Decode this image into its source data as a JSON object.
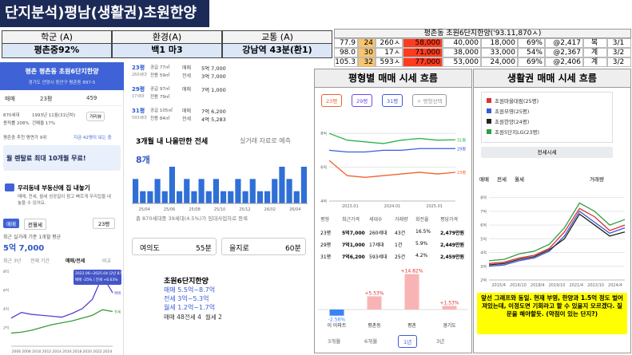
{
  "header": {
    "title": "단지분석)평남(생활권)초원한양"
  },
  "summary_table": {
    "headers": [
      "학군 (A)",
      "환경(A)",
      "교통 (A)"
    ],
    "values": [
      "평촌중92%",
      "백1 마3",
      "강남역 43분(환1)"
    ]
  },
  "price_table": {
    "title": "평촌동 초원6단지한양('93.11,870ㅅ)",
    "rows": [
      [
        "77.9",
        "24",
        "260ㅅ",
        "58,000",
        "40,000",
        "18,000",
        "69%",
        "@2,417",
        "복",
        "3/1"
      ],
      [
        "98.0",
        "30",
        "17ㅅ",
        "71,000",
        "38,000",
        "33,000",
        "54%",
        "@2,367",
        "계",
        "3/2"
      ],
      [
        "105.3",
        "32",
        "593ㅅ",
        "77,000",
        "53,000",
        "24,000",
        "69%",
        "@2,406",
        "계",
        "3/2"
      ]
    ]
  },
  "app_screen": {
    "title": "평촌 평촌동 초원6단지한양",
    "address": "경기도 안양시 동안구 평촌동 897-5",
    "toolbar": [
      "매매",
      "23평",
      "459"
    ],
    "facts": [
      "870세대",
      "1993년 11월(31년차)",
      "용적률 208%",
      "건폐율 17%"
    ],
    "street_view": "거리뷰",
    "school_note": "평촌중 추천 평면가 9위",
    "viewers": "지금 42명이 보는 중",
    "ad": "월 렌탈료 최대 10개월 무료!",
    "sell_title": "우리동네 부동산에 집 내놓기",
    "sell_desc": "매매, 전세, 월세 성공일이 참고 빠르게 우리집을 내놓을 수 있어요.",
    "deal_tabs": [
      "매매",
      "전월세"
    ],
    "size": "23평",
    "avg_label": "최근 실거래 기준 1개월 평균",
    "avg_price": "5억 7,000",
    "period_tabs": [
      "최근 3년",
      "전체 기간",
      "매매/전세",
      "비교"
    ],
    "annotation": [
      "2022.06~2025.04 (2년 8개월)",
      "매매 -25% / 전세 +6.63%"
    ],
    "chart": {
      "type": "line",
      "ylim": [
        0,
        8
      ],
      "yticks": [
        {
          "value": 2,
          "label": "2억"
        },
        {
          "value": 4,
          "label": "4억"
        },
        {
          "value": 6,
          "label": "6억"
        },
        {
          "value": 8,
          "label": "8억"
        }
      ],
      "x_labels": [
        "2006",
        "2008",
        "2010",
        "2012",
        "2014",
        "2016",
        "2018",
        "2020",
        "2022",
        "2024"
      ],
      "series": [
        {
          "name": "매매",
          "color": "#5b3fd1",
          "values": [
            3.0,
            3.6,
            3.4,
            3.3,
            3.2,
            3.1,
            3.5,
            4.0,
            5.0,
            7.5,
            5.7
          ]
        },
        {
          "name": "전세",
          "color": "#3a9a3a",
          "values": [
            1.4,
            1.5,
            1.7,
            2.0,
            2.3,
            2.5,
            2.7,
            3.0,
            3.3,
            3.9,
            3.7
          ]
        }
      ]
    }
  },
  "listings": [
    {
      "size": "23평",
      "supply": "공급 77㎡",
      "units": "260세대",
      "exclusive": "전용 59㎡",
      "deals": [
        [
          "매매",
          "5억 7,000"
        ],
        [
          "전세",
          "3억 7,000"
        ]
      ]
    },
    {
      "size": "29평",
      "supply": "공급 97㎡",
      "units": "17세대",
      "exclusive": "전용 79㎡",
      "deals": [
        [
          "매매",
          "7억 1,000"
        ]
      ]
    },
    {
      "size": "31평",
      "supply": "공급 105㎡",
      "units": "593세대",
      "exclusive": "전용 84㎡",
      "deals": [
        [
          "매매",
          "7억 6,200"
        ],
        [
          "전세",
          "4억 5,283"
        ]
      ]
    }
  ],
  "forecast": {
    "title": "3개월 내 나올만한 전세",
    "note": "실거래 자료로 예측",
    "count": "8개",
    "chart": {
      "type": "bar",
      "color": "#2f6fd6",
      "ylim": [
        0,
        3
      ],
      "values": [
        2,
        1,
        1,
        2,
        1,
        3,
        1,
        2,
        1,
        2,
        1,
        2,
        1,
        1,
        2,
        1,
        2,
        1,
        1,
        2,
        3,
        2,
        1,
        3
      ],
      "x_labels": [
        "25/04",
        "25/06",
        "25/08",
        "25/10",
        "25/12",
        "26/02",
        "26/04"
      ]
    },
    "footnote": "총 870세대중 39세대(4.5%)가 임대사업자로 등록"
  },
  "commute": [
    [
      "여의도",
      "55분"
    ],
    [
      "을지로",
      "60분"
    ]
  ],
  "complex_card": {
    "name": "초원6단지한양",
    "lines": [
      "매매 5.5억~8.7억",
      "전세 3억~5.3억",
      "월세 1.2억~1.7억"
    ],
    "counts": [
      "매매 48",
      "전세 4",
      "월세 2"
    ]
  },
  "size_trend": {
    "title": "평형별 매매 시세 흐름",
    "chips": [
      "23평",
      "29평",
      "31평",
      "+ 평형선택"
    ],
    "chart": {
      "type": "line",
      "ylim": [
        4,
        9
      ],
      "grid": true,
      "yticks": [
        {
          "value": 4,
          "label": "4억"
        },
        {
          "value": 6,
          "label": "6억"
        },
        {
          "value": 8,
          "label": "8억"
        }
      ],
      "x_labels": [
        "2023.01",
        "2024.01",
        "2025.01"
      ],
      "series": [
        {
          "name": "31평",
          "color": "#2bb24c",
          "values": [
            8.0,
            7.6,
            7.5,
            7.4,
            7.6,
            7.7,
            7.6,
            7.62
          ]
        },
        {
          "name": "29평",
          "color": "#3b5bdb",
          "values": [
            7.0,
            6.9,
            6.9,
            7.0,
            7.0,
            7.1,
            7.1,
            7.1
          ]
        },
        {
          "name": "23평",
          "color": "#f0622d",
          "values": [
            6.4,
            5.5,
            5.4,
            5.5,
            5.6,
            5.7,
            5.6,
            5.7
          ]
        }
      ]
    },
    "table": {
      "headers": [
        "평형",
        "최근가격",
        "세대수",
        "거래량",
        "회전율",
        "평당가격"
      ],
      "rows": [
        [
          "23평",
          "5억7,000",
          "260세대",
          "43건",
          "16.5%",
          "2,479만원"
        ],
        [
          "29평",
          "7억1,000",
          "17세대",
          "1건",
          "5.9%",
          "2,449만원"
        ],
        [
          "31평",
          "7억6,200",
          "593세대",
          "25건",
          "4.2%",
          "2,459만원"
        ]
      ]
    },
    "change": {
      "type": "bar",
      "ylim": [
        -4,
        16
      ],
      "categories": [
        "이 아파트",
        "평촌동",
        "평촌",
        "경기도"
      ],
      "values": [
        -2.56,
        5.53,
        14.82,
        1.53
      ],
      "value_labels": [
        "-2.56%",
        "+5.53%",
        "+14.82%",
        "+1.53%"
      ],
      "colors": [
        "#3b82f6",
        "#f8b4b4",
        "#f8b4b4",
        "#f8b4b4"
      ]
    },
    "period_tabs": [
      "3개월",
      "6개월",
      "1년",
      "3년"
    ]
  },
  "area_trend": {
    "title": "생활권 매매 시세 흐름",
    "button": "전세시세",
    "radios": [
      "매매",
      "전세",
      "월세",
      "거래량"
    ],
    "chart": {
      "type": "line",
      "ylim": [
        2,
        8.5
      ],
      "grid": true,
      "yticks": [
        {
          "value": 2,
          "label": "2억"
        },
        {
          "value": 3,
          "label": "3억"
        },
        {
          "value": 4,
          "label": "4억"
        },
        {
          "value": 5,
          "label": "5억"
        },
        {
          "value": 6,
          "label": "6억"
        },
        {
          "value": 7,
          "label": "7억"
        },
        {
          "value": 8,
          "label": "8억"
        }
      ],
      "x_labels": [
        "2015/4",
        "2016/10",
        "2018/4",
        "2019/10",
        "2021/4",
        "2022/10",
        "2024/4"
      ],
      "series": [
        {
          "name": "초원마을대림(25평)",
          "color": "#e03131",
          "values": [
            3.2,
            3.3,
            3.6,
            3.8,
            4.3,
            5.5,
            7.2,
            6.6,
            5.6,
            6.0
          ]
        },
        {
          "name": "초원부영(25평)",
          "color": "#3b5bdb",
          "values": [
            3.0,
            3.1,
            3.4,
            3.6,
            4.1,
            5.2,
            7.0,
            6.2,
            5.4,
            5.8
          ]
        },
        {
          "name": "초원한양(24평)",
          "color": "#222222",
          "values": [
            3.1,
            3.2,
            3.5,
            3.7,
            4.2,
            5.0,
            6.8,
            6.0,
            5.2,
            5.5
          ]
        },
        {
          "name": "초원5단지LG(23평)",
          "color": "#2f9e44",
          "values": [
            3.4,
            3.5,
            3.9,
            4.1,
            4.6,
            5.8,
            7.6,
            7.0,
            6.0,
            6.4
          ]
        }
      ]
    },
    "note": "앞선 그래프와 동일. 현재 부영, 한양과 1.5억 정도 벌어져있는데, 이정도면 기회라고 할 수 있을지 모르겠다. 질문을 해야할듯. (약점이 있는 단지?)"
  }
}
